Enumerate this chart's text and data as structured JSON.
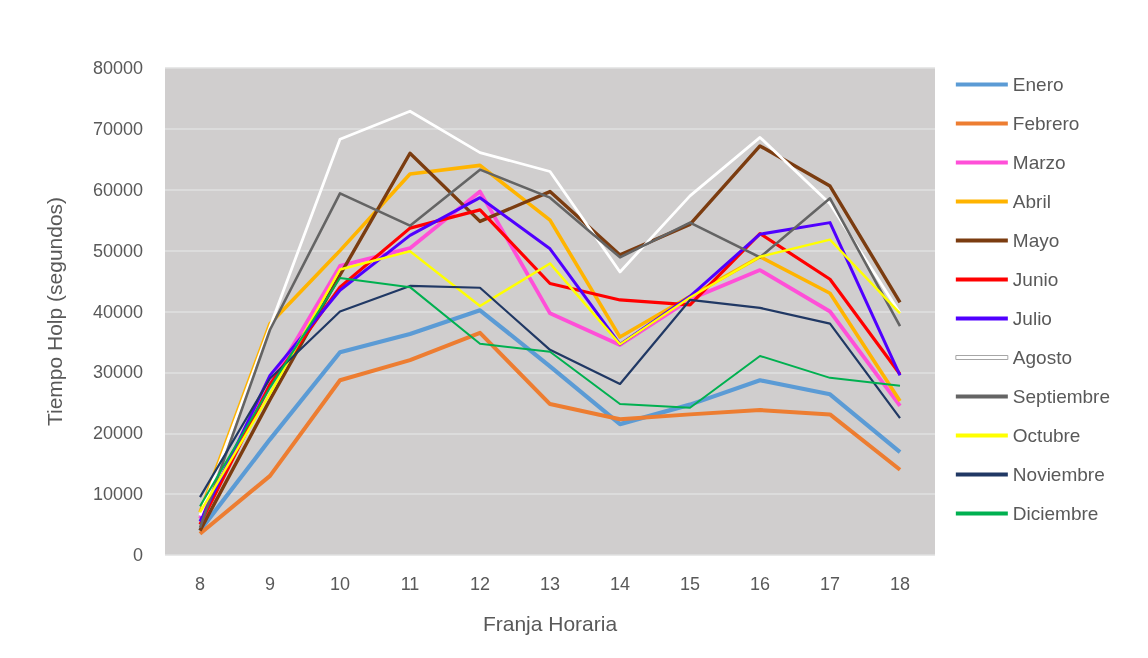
{
  "chart_data": {
    "type": "line",
    "xlabel": "Franja Horaria",
    "ylabel": "Tiempo Holp (segundos)",
    "categories": [
      "8",
      "9",
      "10",
      "11",
      "12",
      "13",
      "14",
      "15",
      "16",
      "17",
      "18"
    ],
    "ylim": [
      0,
      80000
    ],
    "yticks": [
      0,
      10000,
      20000,
      30000,
      40000,
      50000,
      60000,
      70000,
      80000
    ],
    "grid": "y",
    "legend": "right",
    "marker": "none",
    "series": [
      {
        "name": "Enero",
        "color": "#5b9bd5",
        "values": [
          4000,
          19000,
          33300,
          36300,
          40200,
          31000,
          21500,
          24700,
          28700,
          26400,
          16900
        ]
      },
      {
        "name": "Febrero",
        "color": "#ed7d31",
        "values": [
          3500,
          13000,
          28700,
          32000,
          36500,
          24800,
          22300,
          23100,
          23800,
          23100,
          14000
        ]
      },
      {
        "name": "Marzo",
        "color": "#ff4fd8",
        "values": [
          6000,
          28000,
          47500,
          50400,
          59700,
          39700,
          34500,
          42000,
          46800,
          40000,
          24500
        ]
      },
      {
        "name": "Abril",
        "color": "#ffb400",
        "values": [
          7000,
          38000,
          50000,
          62600,
          64000,
          55000,
          35800,
          42500,
          49000,
          43000,
          25300
        ]
      },
      {
        "name": "Mayo",
        "color": "#7b3c10",
        "values": [
          4000,
          25500,
          46000,
          66000,
          54800,
          59700,
          49300,
          54300,
          67200,
          60600,
          41500
        ]
      },
      {
        "name": "Junio",
        "color": "#ff0000",
        "values": [
          5000,
          28000,
          44000,
          53700,
          56700,
          44600,
          41900,
          41100,
          52800,
          45300,
          29700
        ]
      },
      {
        "name": "Julio",
        "color": "#5000ff",
        "values": [
          5500,
          29500,
          43500,
          52500,
          58700,
          50300,
          34600,
          42500,
          52700,
          54600,
          29500
        ]
      },
      {
        "name": "Agosto",
        "color": "#ffffff",
        "values": [
          6500,
          37500,
          68300,
          72900,
          66100,
          63000,
          46500,
          59000,
          68600,
          57700,
          39700
        ]
      },
      {
        "name": "Septiembre",
        "color": "#646464",
        "values": [
          4500,
          37000,
          59400,
          54100,
          63300,
          58700,
          48900,
          54600,
          48900,
          58600,
          37600
        ]
      },
      {
        "name": "Octubre",
        "color": "#ffff00",
        "values": [
          7000,
          26500,
          46900,
          49900,
          40900,
          47900,
          34600,
          42300,
          49000,
          51800,
          39700
        ]
      },
      {
        "name": "Noviembre",
        "color": "#203864",
        "values": [
          9500,
          29000,
          40000,
          44200,
          43900,
          33700,
          28100,
          41900,
          40600,
          38000,
          22500
        ]
      },
      {
        "name": "Diciembre",
        "color": "#00b050",
        "values": [
          8000,
          27500,
          45500,
          44000,
          34700,
          33400,
          24800,
          24200,
          32700,
          29100,
          27800
        ]
      }
    ]
  }
}
